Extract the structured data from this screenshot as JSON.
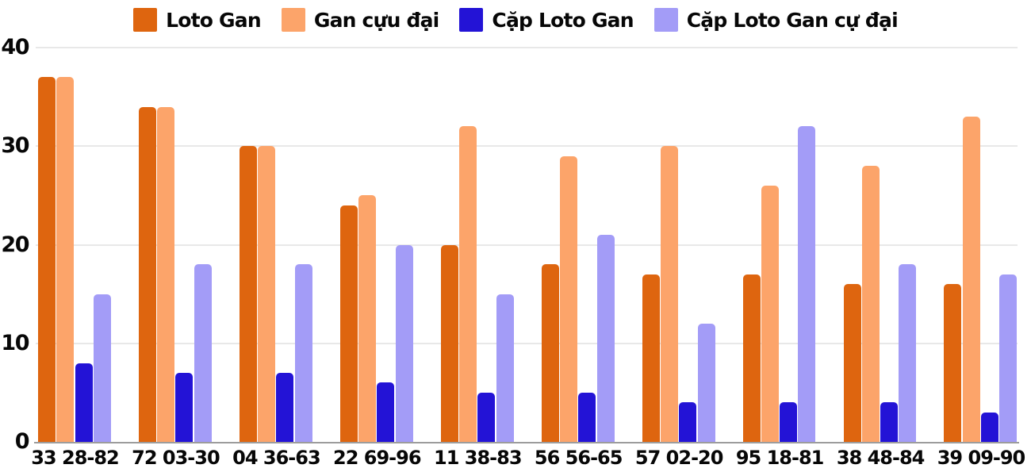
{
  "chart_data": {
    "type": "bar",
    "title": "",
    "xlabel": "",
    "ylabel": "",
    "ylim": [
      0,
      40
    ],
    "y_ticks": [
      "0",
      "10",
      "20",
      "30",
      "40"
    ],
    "grid": true,
    "legend_position": "top",
    "categories": [
      "33 28-82",
      "72 03-30",
      "04 36-63",
      "22 69-96",
      "11 38-83",
      "56 56-65",
      "57 02-20",
      "95 18-81",
      "38 48-84",
      "39 09-90"
    ],
    "series": [
      {
        "key": "loto-gan",
        "name": "Loto Gan",
        "color": "#de650f",
        "values": [
          37,
          34,
          30,
          24,
          20,
          18,
          17,
          17,
          16,
          16
        ]
      },
      {
        "key": "gan-cuu-dai",
        "name": "Gan cựu đại",
        "color": "#fca46a",
        "values": [
          37,
          34,
          30,
          25,
          32,
          29,
          30,
          26,
          28,
          33
        ]
      },
      {
        "key": "cap-loto-gan",
        "name": "Cặp Loto Gan",
        "color": "#2313d6",
        "values": [
          8,
          7,
          7,
          6,
          5,
          5,
          4,
          4,
          4,
          3
        ]
      },
      {
        "key": "cap-loto-gan-cu-dai",
        "name": "Cặp Loto Gan cự đại",
        "color": "#a39cf7",
        "values": [
          15,
          18,
          18,
          20,
          15,
          21,
          12,
          32,
          18,
          17
        ]
      }
    ],
    "colors": {
      "gridline": "#e8e8e8",
      "axis_line": "#9c9c9c",
      "text": "#070707"
    }
  }
}
